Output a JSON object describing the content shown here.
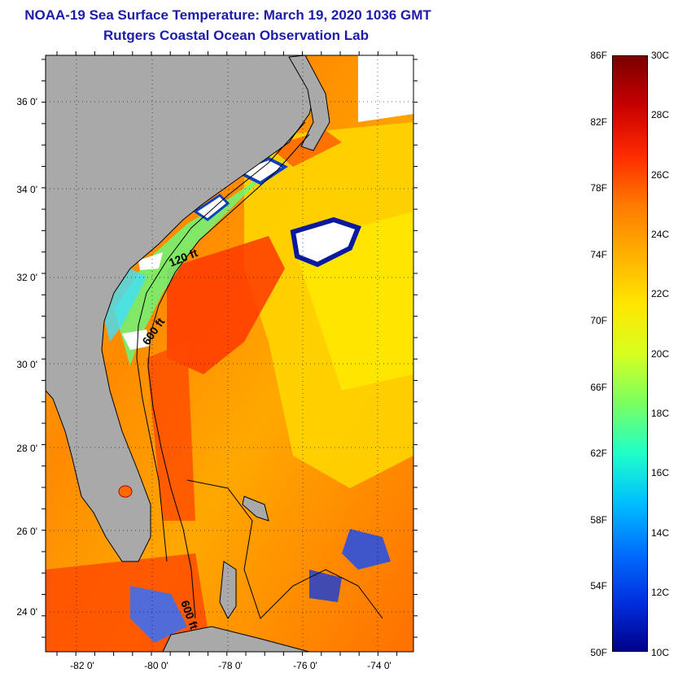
{
  "header": {
    "title": "NOAA-19 Sea Surface Temperature:  March 19, 2020 1036 GMT",
    "subtitle": "Rutgers Coastal Ocean Observation Lab"
  },
  "map": {
    "lat_labels": [
      "36 0'",
      "34 0'",
      "32 0'",
      "30 0'",
      "28 0'",
      "26 0'",
      "24 0'"
    ],
    "lon_labels": [
      "-82 0'",
      "-80 0'",
      "-78 0'",
      "-76 0'",
      "-74 0'"
    ],
    "contour_labels": [
      "120 ft",
      "600 ft",
      "600 ft"
    ],
    "colors": {
      "land": "#a9a9a9",
      "cloud": "#ffffff"
    }
  },
  "colorbar": {
    "fahrenheit": [
      "86F",
      "82F",
      "78F",
      "74F",
      "70F",
      "66F",
      "62F",
      "58F",
      "54F",
      "50F"
    ],
    "celsius": [
      "30C",
      "28C",
      "26C",
      "24C",
      "22C",
      "20C",
      "18C",
      "16C",
      "14C",
      "12C",
      "10C"
    ],
    "gradient": [
      "#7a0000",
      "#c80000",
      "#ff2a00",
      "#ff7a00",
      "#ffb000",
      "#ffe600",
      "#d6ff20",
      "#7aff60",
      "#20ffc8",
      "#00c0ff",
      "#0070ff",
      "#0030e0",
      "#00008a"
    ]
  }
}
